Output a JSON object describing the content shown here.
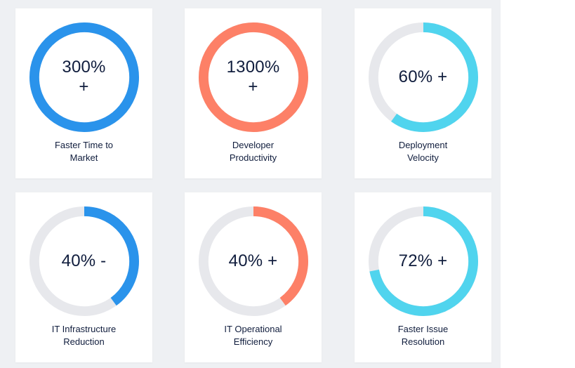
{
  "colors": {
    "track": "#e7e8ec",
    "blue": "#2a93eb",
    "salmon": "#fd8067",
    "cyan": "#50d4ee"
  },
  "stats": [
    {
      "value": "300%\n+",
      "label": "Faster Time to\nMarket",
      "progress": 1.0,
      "color": "#2a93eb"
    },
    {
      "value": "1300%\n+",
      "label": "Developer\nProductivity",
      "progress": 1.0,
      "color": "#fd8067"
    },
    {
      "value": "60% +",
      "label": "Deployment\nVelocity",
      "progress": 0.6,
      "color": "#50d4ee"
    },
    {
      "value": "40% -",
      "label": "IT Infrastructure\nReduction",
      "progress": 0.4,
      "color": "#2a93eb"
    },
    {
      "value": "40% +",
      "label": "IT Operational\nEfficiency",
      "progress": 0.4,
      "color": "#fd8067"
    },
    {
      "value": "72% +",
      "label": "Faster Issue\nResolution",
      "progress": 0.72,
      "color": "#50d4ee"
    }
  ]
}
